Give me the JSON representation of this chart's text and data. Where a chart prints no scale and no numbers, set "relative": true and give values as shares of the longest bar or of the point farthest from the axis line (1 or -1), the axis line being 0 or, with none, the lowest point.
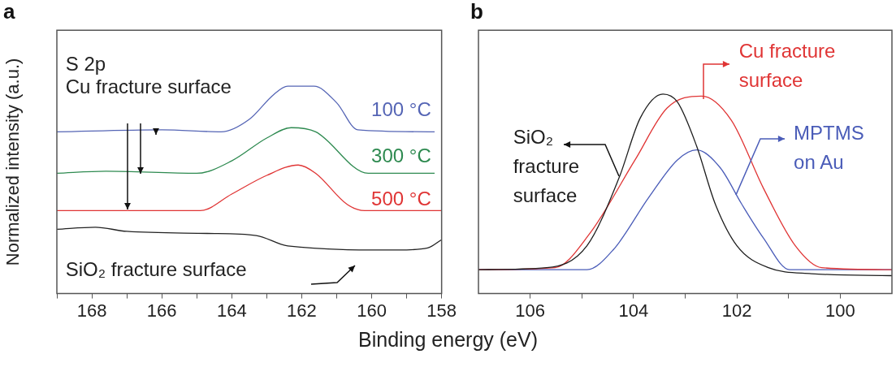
{
  "chart_data": [
    {
      "type": "line",
      "title": "a",
      "ylabel": "Normalized intensity (a.u.)",
      "xlabel": "Binding energy (eV)",
      "relative": true,
      "xlim": [
        169,
        158
      ],
      "xticks": [
        {
          "value": 169,
          "label": null
        },
        168,
        {
          "value": 167,
          "label": null
        },
        166,
        {
          "value": 165,
          "label": null
        },
        164,
        {
          "value": 163,
          "label": null
        },
        162,
        {
          "value": 161,
          "label": null
        },
        160,
        {
          "value": 159,
          "label": null
        },
        158
      ],
      "annotations": [
        "S 2p",
        "Cu fracture surface"
      ],
      "series": [
        {
          "name": "100 °C",
          "color": "#5565b5",
          "x": [
            169,
            166,
            164.3,
            163.5,
            162.8,
            162.4,
            161.65,
            161,
            160.4,
            158.2
          ],
          "values": [
            0.78,
            0.79,
            0.78,
            0.84,
            0.96,
            1.0,
            1.0,
            0.92,
            0.79,
            0.78
          ]
        },
        {
          "name": "300 °C",
          "color": "#2e8a50",
          "x": [
            169,
            167.6,
            165,
            164,
            163,
            162.3,
            161.6,
            160.1,
            158.2
          ],
          "values": [
            0.58,
            0.59,
            0.58,
            0.64,
            0.75,
            0.8,
            0.78,
            0.58,
            0.58
          ]
        },
        {
          "name": "500 °C",
          "color": "#e03535",
          "x": [
            169,
            164.9,
            164,
            163,
            162.1,
            161.6,
            160.7,
            160.2,
            158
          ],
          "values": [
            0.4,
            0.4,
            0.48,
            0.57,
            0.62,
            0.58,
            0.43,
            0.4,
            0.4
          ]
        },
        {
          "name": "SiO₂ fracture surface",
          "color": "#222222",
          "x": [
            169,
            167.9,
            167,
            164.7,
            163.3,
            162.4,
            159.25,
            158.4,
            158
          ],
          "values": [
            0.31,
            0.32,
            0.3,
            0.29,
            0.28,
            0.23,
            0.21,
            0.22,
            0.26
          ]
        }
      ]
    },
    {
      "type": "line",
      "title": "b",
      "relative": true,
      "legend": "top right",
      "xlim": [
        107,
        99
      ],
      "xticks": [
        106,
        {
          "value": 105,
          "label": null
        },
        104,
        {
          "value": 103,
          "label": null
        },
        102,
        {
          "value": 101,
          "label": null
        },
        100
      ],
      "series": [
        {
          "name": "SiO₂ fracture surface",
          "color": "#1e1e1e",
          "x": [
            107,
            105.68,
            104.9,
            104.28,
            103.87,
            103.43,
            103.15,
            102.78,
            102.42,
            102.0,
            101.39,
            100.56,
            99
          ],
          "values": [
            0.12,
            0.13,
            0.24,
            0.58,
            0.88,
            1.0,
            0.96,
            0.74,
            0.45,
            0.24,
            0.13,
            0.1,
            0.09
          ]
        },
        {
          "name": "Cu fracture surface",
          "color": "#e03535",
          "x": [
            107,
            105.52,
            104.85,
            103.97,
            103.35,
            102.68,
            102.11,
            101.49,
            100.87,
            100.36,
            99
          ],
          "values": [
            0.12,
            0.13,
            0.3,
            0.67,
            0.93,
            0.99,
            0.87,
            0.53,
            0.24,
            0.13,
            0.12
          ]
        },
        {
          "name": "MPTMS on Au",
          "color": "#4a5cb8",
          "x": [
            107,
            104.9,
            104.39,
            103.71,
            103.15,
            102.78,
            102.32,
            101.91,
            101.49,
            100.98,
            99
          ],
          "values": [
            0.12,
            0.12,
            0.22,
            0.48,
            0.67,
            0.72,
            0.63,
            0.45,
            0.28,
            0.12,
            0.12
          ]
        }
      ]
    }
  ]
}
